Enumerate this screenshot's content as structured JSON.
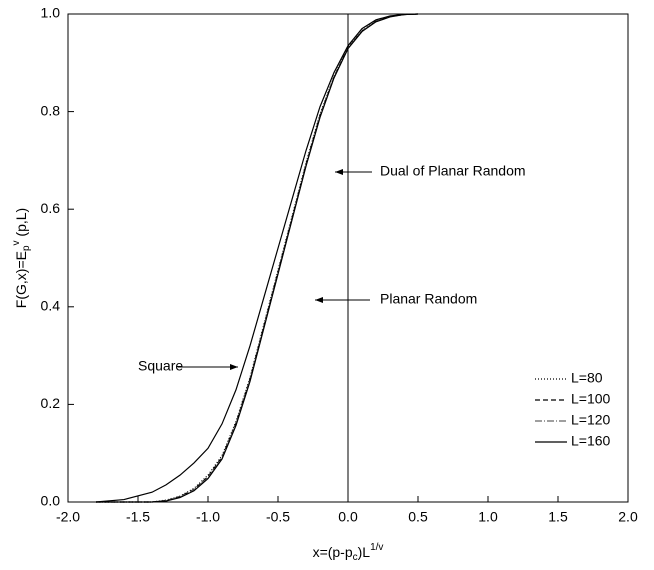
{
  "chart_data": {
    "type": "line",
    "xlabel_parts": [
      "x=(p-p",
      "c",
      ")L",
      "1/v"
    ],
    "ylabel_parts": [
      "F(G,x)=E",
      "p",
      "v",
      " (p,L)"
    ],
    "x": [
      -1.8,
      -1.6,
      -1.4,
      -1.3,
      -1.2,
      -1.1,
      -1.0,
      -0.9,
      -0.8,
      -0.7,
      -0.6,
      -0.5,
      -0.4,
      -0.3,
      -0.2,
      -0.1,
      0.0,
      0.1,
      0.2,
      0.3,
      0.4,
      0.5
    ],
    "series": [
      {
        "name": "L=80",
        "color": "#000000",
        "linestyle": "dotted",
        "values": [
          0,
          0,
          0,
          0.004,
          0.012,
          0.028,
          0.055,
          0.095,
          0.165,
          0.255,
          0.365,
          0.475,
          0.585,
          0.695,
          0.795,
          0.872,
          0.932,
          0.966,
          0.986,
          0.995,
          0.999,
          1.0
        ]
      },
      {
        "name": "L=100",
        "color": "#000000",
        "linestyle": "dashed",
        "values": [
          0,
          0,
          0,
          0.003,
          0.011,
          0.026,
          0.052,
          0.092,
          0.162,
          0.252,
          0.362,
          0.472,
          0.582,
          0.692,
          0.792,
          0.871,
          0.931,
          0.965,
          0.985,
          0.995,
          0.999,
          1.0
        ]
      },
      {
        "name": "L=120",
        "color": "#666666",
        "linestyle": "dashdot",
        "values": [
          0,
          0,
          0,
          0.003,
          0.01,
          0.025,
          0.05,
          0.09,
          0.16,
          0.25,
          0.36,
          0.47,
          0.58,
          0.69,
          0.79,
          0.87,
          0.93,
          0.965,
          0.985,
          0.995,
          0.999,
          1.0
        ]
      },
      {
        "name": "L=160",
        "color": "#000000",
        "linestyle": "solid",
        "values": [
          0,
          0,
          0,
          0.002,
          0.009,
          0.023,
          0.048,
          0.088,
          0.157,
          0.247,
          0.357,
          0.467,
          0.578,
          0.688,
          0.788,
          0.869,
          0.929,
          0.964,
          0.984,
          0.994,
          0.999,
          1.0
        ]
      },
      {
        "name": "Square",
        "color": "#000000",
        "linestyle": "solid",
        "annotated": true,
        "values": [
          0,
          0.005,
          0.02,
          0.035,
          0.055,
          0.08,
          0.11,
          0.16,
          0.23,
          0.32,
          0.42,
          0.52,
          0.62,
          0.72,
          0.81,
          0.88,
          0.935,
          0.97,
          0.988,
          0.996,
          0.999,
          1.0
        ]
      }
    ],
    "annotations": [
      "Dual of Planar Random",
      "Planar Random"
    ],
    "xlim": [
      -2.0,
      2.0
    ],
    "ylim": [
      0.0,
      1.0
    ],
    "xticks": [
      {
        "value": -2.0,
        "label": "-2.0"
      },
      -1.5,
      {
        "value": -1.0,
        "label": "-1.0"
      },
      -0.5,
      {
        "value": 0.0,
        "label": "0.0"
      },
      0.5,
      {
        "value": 1.0,
        "label": "1.0"
      },
      1.5,
      {
        "value": 2.0,
        "label": "2.0"
      }
    ],
    "yticks": [
      {
        "value": 0.0,
        "label": "0.0"
      },
      0.2,
      0.4,
      0.6,
      0.8,
      {
        "value": 1.0,
        "label": "1.0"
      }
    ],
    "grid": false,
    "legend": "lower right"
  }
}
